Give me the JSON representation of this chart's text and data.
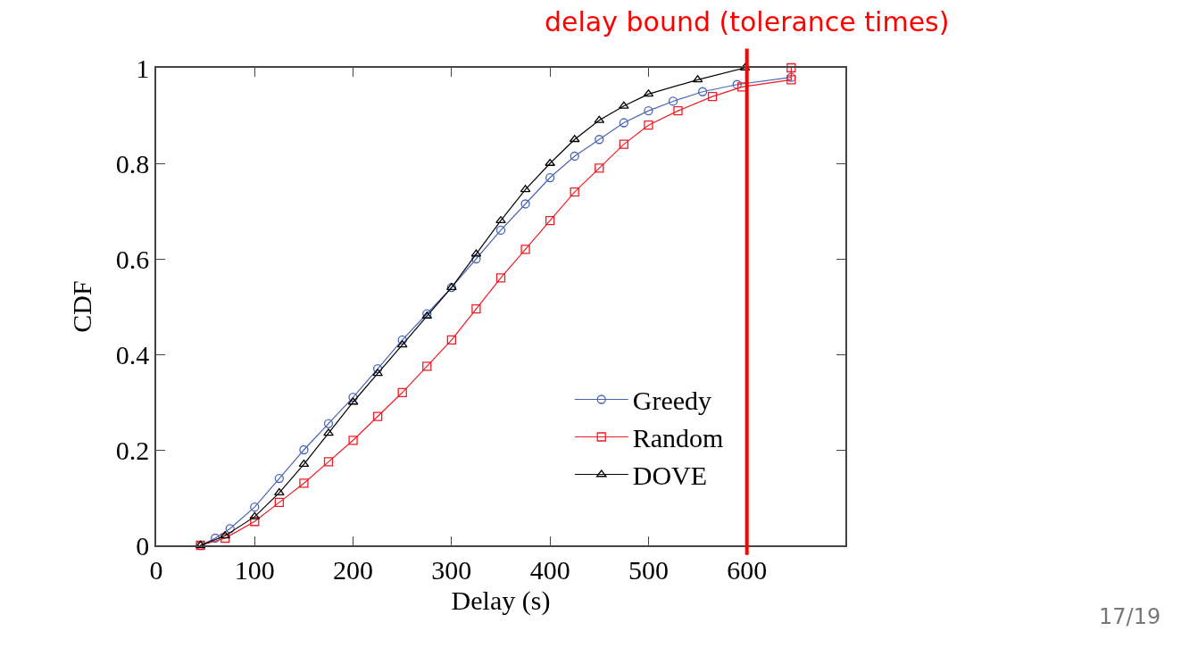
{
  "chart_data": {
    "type": "line",
    "xlabel": "Delay (s)",
    "ylabel": "CDF",
    "xlim": [
      0,
      700
    ],
    "ylim": [
      0,
      1
    ],
    "xticks": [
      0,
      100,
      200,
      300,
      400,
      500,
      600
    ],
    "yticks": [
      0,
      0.2,
      0.4,
      0.6,
      0.8,
      1
    ],
    "legend": "bottom right",
    "line_style": "solid",
    "series": [
      {
        "name": "Greedy",
        "color": "#4a64b4",
        "marker": "circle",
        "x": [
          45,
          60,
          75,
          100,
          125,
          150,
          175,
          200,
          225,
          250,
          275,
          300,
          325,
          350,
          375,
          400,
          425,
          450,
          475,
          500,
          525,
          555,
          590,
          645
        ],
        "values": [
          0,
          0.015,
          0.035,
          0.08,
          0.14,
          0.2,
          0.255,
          0.31,
          0.37,
          0.43,
          0.485,
          0.54,
          0.6,
          0.66,
          0.715,
          0.77,
          0.815,
          0.85,
          0.885,
          0.91,
          0.93,
          0.95,
          0.965,
          0.98
        ]
      },
      {
        "name": "Random",
        "color": "#ee1c24",
        "marker": "square",
        "x": [
          45,
          70,
          100,
          125,
          150,
          175,
          200,
          225,
          250,
          275,
          300,
          325,
          350,
          375,
          400,
          425,
          450,
          475,
          500,
          530,
          565,
          595,
          645,
          645
        ],
        "values": [
          0,
          0.015,
          0.05,
          0.09,
          0.13,
          0.175,
          0.22,
          0.27,
          0.32,
          0.375,
          0.43,
          0.495,
          0.56,
          0.62,
          0.68,
          0.74,
          0.79,
          0.84,
          0.88,
          0.91,
          0.94,
          0.96,
          0.975,
          1.0
        ]
      },
      {
        "name": "DOVE",
        "color": "#000000",
        "marker": "triangle",
        "x": [
          45,
          70,
          100,
          125,
          150,
          175,
          200,
          225,
          250,
          275,
          300,
          325,
          350,
          375,
          400,
          425,
          450,
          475,
          500,
          550,
          598
        ],
        "values": [
          0,
          0.02,
          0.06,
          0.11,
          0.17,
          0.235,
          0.3,
          0.36,
          0.42,
          0.48,
          0.54,
          0.61,
          0.68,
          0.745,
          0.8,
          0.85,
          0.89,
          0.92,
          0.945,
          0.975,
          1.0
        ]
      }
    ],
    "ref_lines": [
      {
        "axis": "x",
        "value": 600,
        "label": "delay bound (tolerance times)",
        "color": "#ff0000"
      }
    ],
    "annotations": [
      "17/19"
    ]
  }
}
